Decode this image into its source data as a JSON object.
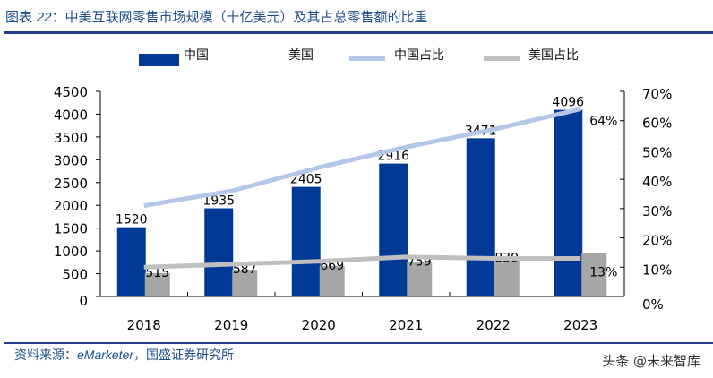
{
  "title": {
    "prefix": "图表 ",
    "number": "22",
    "text": "：中美互联网零售市场规模（十亿美元）及其占总零售额的比重"
  },
  "source": {
    "prefix": "资料来源：",
    "brand": "eMarketer",
    "suffix": "，国盛证券研究所"
  },
  "watermark": "头条 @未来智库",
  "colors": {
    "china": "#003a96",
    "us": "#a6a6a6",
    "china_share": "#b4c7e7",
    "us_share": "#bfbfbf",
    "title": "#1f4e8c"
  },
  "chart_data": {
    "type": "bar+line",
    "categories": [
      "2018",
      "2019",
      "2020",
      "2021",
      "2022",
      "2023"
    ],
    "series": [
      {
        "name": "中国",
        "type": "bar",
        "axis": "left",
        "values": [
          1520,
          1935,
          2405,
          2916,
          3471,
          4096
        ],
        "labels": [
          "1520",
          "1935",
          "2405",
          "2916",
          "3471",
          "4096"
        ]
      },
      {
        "name": "美国",
        "type": "bar",
        "axis": "left",
        "values": [
          515,
          587,
          669,
          759,
          839,
          960
        ],
        "labels": [
          "515",
          "587",
          "669",
          "759",
          "839",
          ""
        ]
      },
      {
        "name": "中国占比",
        "type": "line",
        "axis": "right",
        "values": [
          31,
          36,
          44,
          51,
          57,
          64
        ],
        "labels": [
          "",
          "",
          "",
          "",
          "",
          "64%"
        ]
      },
      {
        "name": "美国占比",
        "type": "line",
        "axis": "right",
        "values": [
          10,
          11,
          12,
          13.5,
          13,
          13
        ],
        "labels": [
          "",
          "",
          "",
          "",
          "",
          "13%"
        ]
      }
    ],
    "left_axis": {
      "ylim": [
        0,
        4500
      ],
      "ticks": [
        "0",
        "500",
        "1000",
        "1500",
        "2000",
        "2500",
        "3000",
        "3500",
        "4000",
        "4500"
      ]
    },
    "right_axis": {
      "ylim": [
        0,
        70
      ],
      "ticks": [
        "0%",
        "10%",
        "20%",
        "30%",
        "40%",
        "50%",
        "60%",
        "70%"
      ]
    },
    "legend": "top",
    "grid": false
  }
}
